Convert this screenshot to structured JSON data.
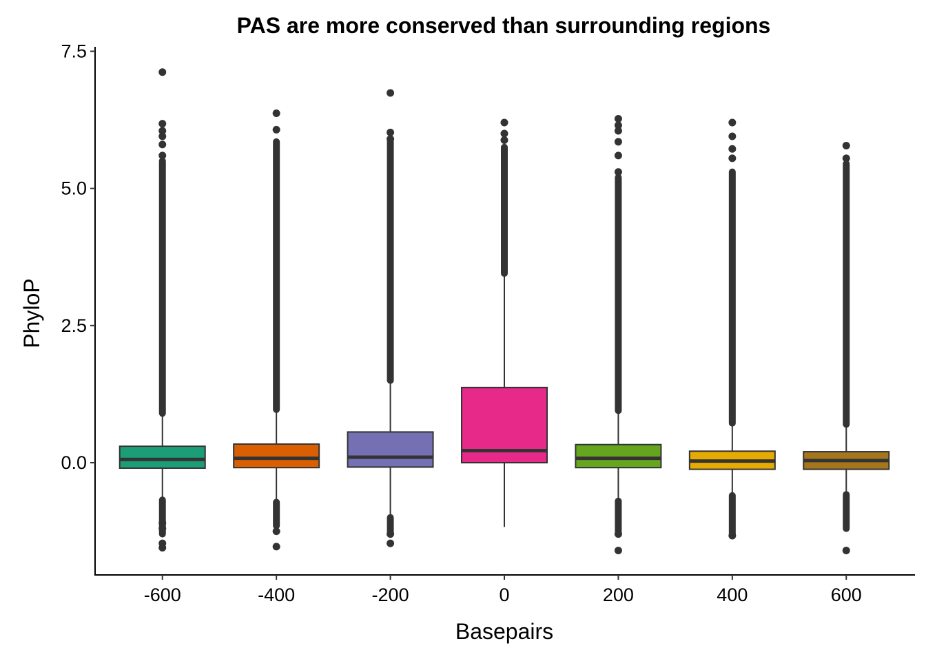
{
  "chart_data": {
    "type": "box",
    "title": "PAS are more conserved than surrounding regions",
    "xlabel": "Basepairs",
    "ylabel": "PhyloP",
    "x_ticks": [
      "-600",
      "-400",
      "-200",
      "0",
      "200",
      "400",
      "600"
    ],
    "y_ticks": [
      "0.0",
      "2.5",
      "5.0",
      "7.5"
    ],
    "xlim": [
      -720,
      720
    ],
    "ylim": [
      -2.05,
      7.5
    ],
    "grid": false,
    "legend": "none",
    "boxes": [
      {
        "x": -600,
        "color": "#1B9E77",
        "q1": -0.1,
        "median": 0.06,
        "q3": 0.3,
        "whisker_low": -0.65,
        "whisker_high": 0.88,
        "outlier_low_band": [
          -1.3,
          -0.68
        ],
        "outlier_high_band": [
          0.9,
          5.5
        ],
        "outliers": [
          -1.55,
          -1.47,
          -1.2,
          -1.1,
          5.6,
          5.8,
          5.95,
          6.05,
          6.18,
          7.12
        ]
      },
      {
        "x": -400,
        "color": "#D95F02",
        "q1": -0.09,
        "median": 0.08,
        "q3": 0.34,
        "whisker_low": -0.7,
        "whisker_high": 0.95,
        "outlier_low_band": [
          -1.15,
          -0.72
        ],
        "outlier_high_band": [
          0.97,
          5.85
        ],
        "outliers": [
          -1.53,
          -1.25,
          6.07,
          6.37
        ]
      },
      {
        "x": -200,
        "color": "#7570B3",
        "q1": -0.08,
        "median": 0.1,
        "q3": 0.56,
        "whisker_low": -0.95,
        "whisker_high": 1.45,
        "outlier_low_band": [
          -1.3,
          -1.0
        ],
        "outlier_high_band": [
          1.5,
          5.85
        ],
        "outliers": [
          -1.47,
          -1.3,
          5.9,
          6.02,
          6.74
        ]
      },
      {
        "x": 0,
        "color": "#E7298A",
        "q1": 0.0,
        "median": 0.22,
        "q3": 1.37,
        "whisker_low": -1.17,
        "whisker_high": 3.4,
        "outlier_low_band": null,
        "outlier_high_band": [
          3.45,
          5.75
        ],
        "outliers": [
          5.88,
          6.0,
          6.2
        ]
      },
      {
        "x": 200,
        "color": "#66A61E",
        "q1": -0.09,
        "median": 0.08,
        "q3": 0.33,
        "whisker_low": -0.68,
        "whisker_high": 0.93,
        "outlier_low_band": [
          -1.25,
          -0.7
        ],
        "outlier_high_band": [
          0.95,
          5.2
        ],
        "outliers": [
          -1.6,
          -1.3,
          5.3,
          5.6,
          5.85,
          6.05,
          6.15,
          6.27
        ]
      },
      {
        "x": 400,
        "color": "#E6AB02",
        "q1": -0.12,
        "median": 0.03,
        "q3": 0.21,
        "whisker_low": -0.58,
        "whisker_high": 0.7,
        "outlier_low_band": [
          -1.3,
          -0.6
        ],
        "outlier_high_band": [
          0.72,
          5.3
        ],
        "outliers": [
          -1.33,
          5.55,
          5.72,
          5.95,
          6.2
        ]
      },
      {
        "x": 600,
        "color": "#A6761D",
        "q1": -0.12,
        "median": 0.04,
        "q3": 0.2,
        "whisker_low": -0.55,
        "whisker_high": 0.68,
        "outlier_low_band": [
          -1.2,
          -0.58
        ],
        "outlier_high_band": [
          0.7,
          5.45
        ],
        "outliers": [
          -1.6,
          5.55,
          5.78
        ]
      }
    ]
  }
}
